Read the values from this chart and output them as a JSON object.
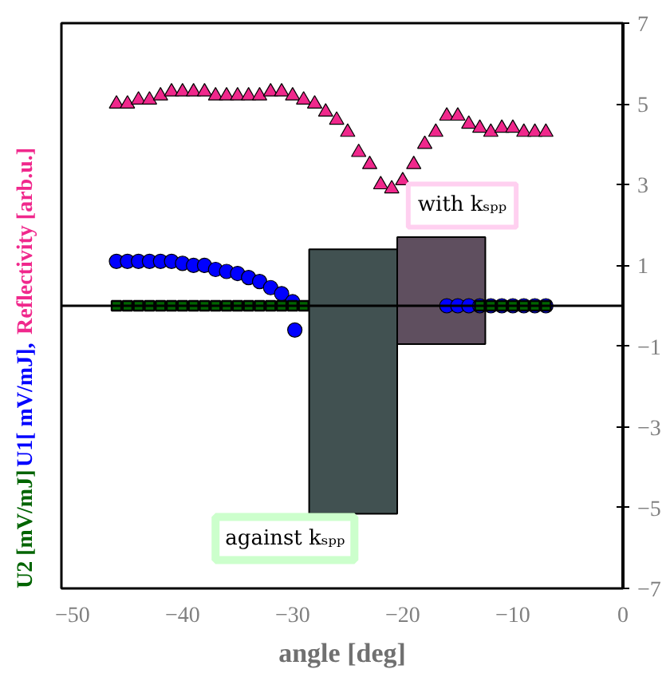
{
  "chart_data": {
    "type": "scatter",
    "xlabel": "angle [deg]",
    "xlim": [
      -51,
      0
    ],
    "xticks": [
      -50,
      -40,
      -30,
      -20,
      -10,
      0
    ],
    "ylim": [
      -7,
      7
    ],
    "yticks": [
      -7,
      -5,
      -3,
      -1,
      1,
      3,
      5,
      7
    ],
    "grid": false,
    "ref_lines": [
      {
        "axis": "y",
        "value": 0,
        "color": "#000000"
      }
    ],
    "series": [
      {
        "type": "bar",
        "color": "#415151",
        "x": [
          -24.5
        ],
        "base": [
          -5.15
        ],
        "values": [
          6.55
        ]
      },
      {
        "type": "bar",
        "color": "#5f4f5f",
        "x": [
          -16.5
        ],
        "base": [
          -0.95
        ],
        "values": [
          2.65
        ]
      },
      {
        "name": "Reflectivity [arb.u.]",
        "marker": "triangle",
        "color": "#f0288c",
        "x": [
          -46,
          -45,
          -44,
          -43,
          -42,
          -41,
          -40,
          -39,
          -38,
          -37,
          -36,
          -35,
          -34,
          -33,
          -32,
          -31,
          -30,
          -29,
          -28,
          -27,
          -26,
          -25,
          -24,
          -23,
          -22,
          -21,
          -20,
          -19,
          -18,
          -17,
          -16,
          -15,
          -14,
          -13,
          -12,
          -11,
          -10,
          -9,
          -8,
          -7
        ],
        "values": [
          5.0,
          5.0,
          5.1,
          5.1,
          5.2,
          5.3,
          5.3,
          5.3,
          5.3,
          5.2,
          5.2,
          5.2,
          5.2,
          5.2,
          5.3,
          5.3,
          5.2,
          5.1,
          5.0,
          4.8,
          4.6,
          4.3,
          3.8,
          3.5,
          3.0,
          2.9,
          3.1,
          3.5,
          4.0,
          4.3,
          4.7,
          4.7,
          4.5,
          4.4,
          4.3,
          4.4,
          4.4,
          4.3,
          4.3,
          4.3
        ]
      },
      {
        "name": "U1[ mV/mJ],",
        "marker": "circle",
        "color": "#0000ff",
        "x": [
          -46,
          -45,
          -44,
          -43,
          -42,
          -41,
          -40,
          -39,
          -38,
          -37,
          -36,
          -35,
          -34,
          -33,
          -32,
          -31,
          -30,
          -29.8,
          -16,
          -15,
          -14,
          -13,
          -12,
          -11,
          -10,
          -9,
          -8,
          -7
        ],
        "values": [
          1.1,
          1.1,
          1.1,
          1.1,
          1.1,
          1.1,
          1.05,
          1.0,
          1.0,
          0.9,
          0.85,
          0.8,
          0.7,
          0.6,
          0.45,
          0.3,
          0.1,
          -0.6,
          0,
          0,
          0,
          0,
          0,
          0,
          0,
          0,
          0,
          0
        ]
      },
      {
        "name": "U2 [mV/mJ]",
        "marker": "square",
        "color": "#006400",
        "x": [
          -46,
          -45,
          -44,
          -43,
          -42,
          -41,
          -40,
          -39,
          -38,
          -37,
          -36,
          -35,
          -34,
          -33,
          -32,
          -31,
          -30,
          -29,
          -13,
          -12,
          -11,
          -10,
          -9,
          -8,
          -7
        ],
        "values": [
          0,
          0,
          0,
          0,
          0,
          0,
          0,
          0,
          0,
          0,
          0,
          0,
          0,
          0,
          0,
          0,
          0,
          0,
          0,
          0,
          0,
          0,
          0,
          0,
          0
        ]
      }
    ],
    "annotations": [
      "with kₛₚₚ",
      "against kₛₚₚ"
    ]
  }
}
